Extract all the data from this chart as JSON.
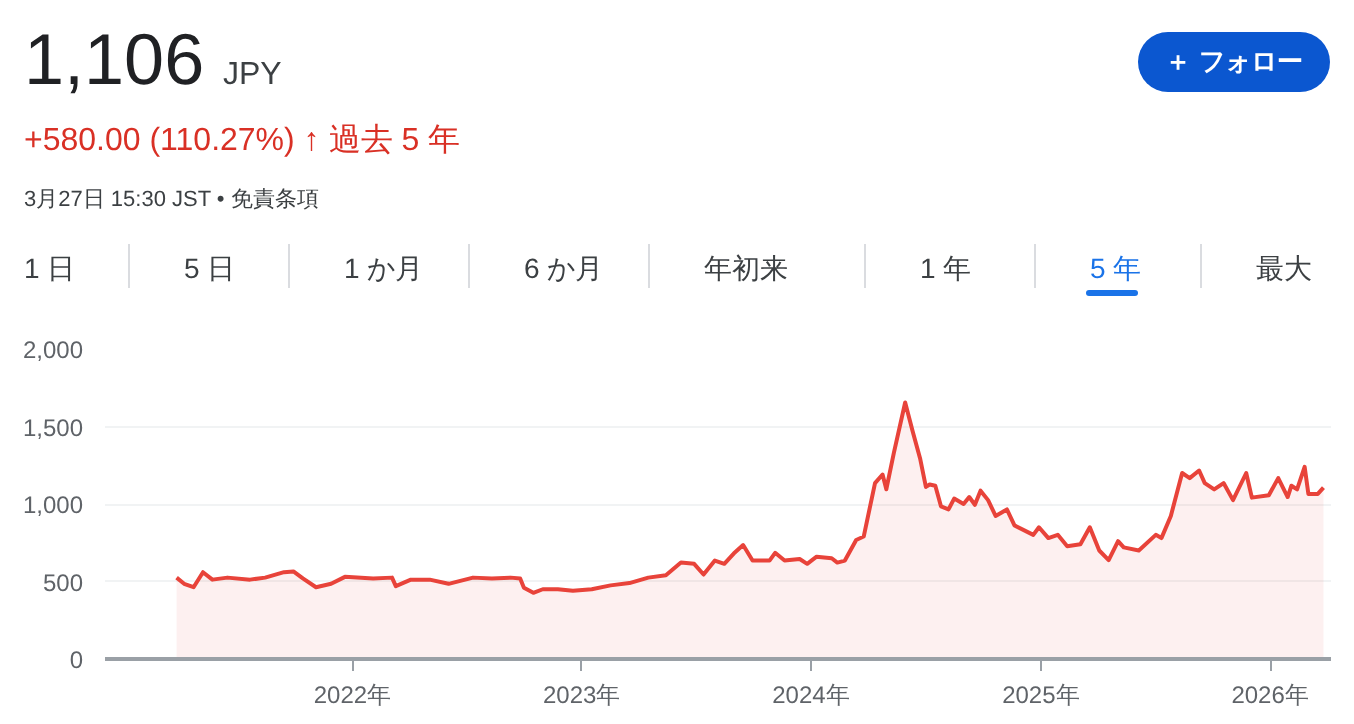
{
  "chart_data": {
    "type": "area",
    "title": "1,106",
    "subtitle": "+580.00 (110.27%) ↑ 過去 5 年",
    "annotations": [
      "JPY",
      "3月27日 15:30 JST • 免責条項",
      "＋ フォロー",
      "1 日",
      "5 日",
      "1 か月",
      "6 か月",
      "年初来",
      "1 年",
      "5 年",
      "最大"
    ],
    "x": [
      "2021-03-27",
      "2021-04-08",
      "2021-04-23",
      "2021-05-08",
      "2021-05-23",
      "2021-06-16",
      "2021-07-22",
      "2021-08-15",
      "2021-09-14",
      "2021-09-29",
      "2021-10-14",
      "2021-11-04",
      "2021-11-28",
      "2021-12-20",
      "2022-02-03",
      "2022-03-05",
      "2022-03-11",
      "2022-04-04",
      "2022-05-04",
      "2022-06-03",
      "2022-07-12",
      "2022-08-11",
      "2022-09-10",
      "2022-09-25",
      "2022-10-01",
      "2022-10-16",
      "2022-10-31",
      "2022-11-24",
      "2022-12-18",
      "2023-01-17",
      "2023-02-16",
      "2023-03-18",
      "2023-04-17",
      "2023-05-15",
      "2023-06-08",
      "2023-06-29",
      "2023-07-14",
      "2023-08-01",
      "2023-08-16",
      "2023-08-31",
      "2023-09-15",
      "2023-09-30",
      "2023-10-27",
      "2023-11-05",
      "2023-11-20",
      "2023-12-14",
      "2023-12-26",
      "2024-01-10",
      "2024-02-03",
      "2024-02-12",
      "2024-02-24",
      "2024-03-13",
      "2024-03-25",
      "2024-04-12",
      "2024-04-24",
      "2024-04-30",
      "2024-05-12",
      "2024-05-30",
      "2024-06-11",
      "2024-06-23",
      "2024-07-02",
      "2024-07-08",
      "2024-07-17",
      "2024-07-26",
      "2024-08-07",
      "2024-08-16",
      "2024-08-31",
      "2024-09-09",
      "2024-09-18",
      "2024-09-27",
      "2024-10-09",
      "2024-10-21",
      "2024-11-08",
      "2024-11-20",
      "2024-12-20",
      "2024-12-29",
      "2025-01-13",
      "2025-01-28",
      "2025-02-12",
      "2025-03-05",
      "2025-03-20",
      "2025-04-04",
      "2025-04-19",
      "2025-05-04",
      "2025-05-13",
      "2025-06-06",
      "2025-07-03",
      "2025-07-12",
      "2025-07-27",
      "2025-08-14",
      "2025-08-26",
      "2025-09-10",
      "2025-09-19",
      "2025-10-04",
      "2025-10-19",
      "2025-11-03",
      "2025-11-24",
      "2025-12-03",
      "2025-12-30",
      "2026-01-14",
      "2026-01-29",
      "2026-02-04",
      "2026-02-13",
      "2026-02-25",
      "2026-03-03",
      "2026-03-18",
      "2026-03-27"
    ],
    "series": [
      {
        "color": "#e8433a",
        "values": [
          525,
          485,
          463,
          560,
          512,
          525,
          512,
          525,
          560,
          565,
          520,
          463,
          485,
          530,
          520,
          525,
          470,
          512,
          512,
          485,
          525,
          520,
          525,
          520,
          460,
          427,
          450,
          450,
          440,
          450,
          475,
          490,
          525,
          540,
          622,
          614,
          545,
          635,
          614,
          680,
          735,
          635,
          635,
          685,
          635,
          645,
          614,
          660,
          650,
          622,
          635,
          768,
          790,
          1135,
          1190,
          1095,
          1330,
          1655,
          1468,
          1290,
          1110,
          1126,
          1118,
          985,
          965,
          1035,
          1000,
          1045,
          995,
          1086,
          1025,
          923,
          965,
          862,
          801,
          850,
          780,
          801,
          728,
          740,
          850,
          700,
          638,
          760,
          720,
          700,
          801,
          780,
          923,
          1200,
          1167,
          1216,
          1135,
          1094,
          1135,
          1025,
          1200,
          1041,
          1057,
          1167,
          1045,
          1118,
          1094,
          1240,
          1065,
          1065,
          1106
        ]
      }
    ],
    "xlim": [
      "2020-12-03",
      "2026-04-08"
    ],
    "xticks": [
      {
        "value": "2022-01-01",
        "label": "2022年"
      },
      {
        "value": "2023-01-01",
        "label": "2023年"
      },
      {
        "value": "2024-01-01",
        "label": "2024年"
      },
      {
        "value": "2025-01-01",
        "label": "2025年"
      },
      {
        "value": "2026-01-01",
        "label": "2026年"
      }
    ],
    "ylim": [
      0,
      2000
    ],
    "yticks": [
      0,
      {
        "value": 500,
        "label": "500"
      },
      {
        "value": 1000,
        "label": "1,000"
      },
      {
        "value": 1500,
        "label": "1,500"
      },
      {
        "value": 2000,
        "label": "2,000"
      }
    ],
    "grid": "y"
  }
}
